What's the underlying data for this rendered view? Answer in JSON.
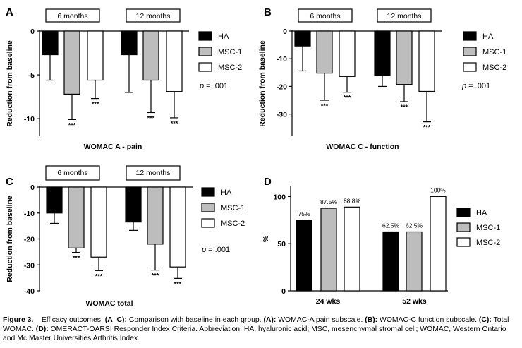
{
  "legend_labels": [
    "HA",
    "MSC-1",
    "MSC-2"
  ],
  "series_colors": {
    "HA": "#000000",
    "MSC-1": "#bdbdbd",
    "MSC-2": "#ffffff"
  },
  "significance_mark": "***",
  "chart_data": [
    {
      "panel": "A",
      "type": "bar",
      "title": "WOMAC A - pain",
      "xlabel": "WOMAC A - pain",
      "ylabel": "Reduction from baseline",
      "ylim": [
        -12,
        0
      ],
      "yticks": [
        0,
        -5,
        -10
      ],
      "groups": [
        "6 months",
        "12 months"
      ],
      "series": [
        {
          "name": "HA",
          "values": [
            -2.7,
            -2.7
          ],
          "errors": [
            2.9,
            4.3
          ],
          "sig": [
            false,
            false
          ]
        },
        {
          "name": "MSC-1",
          "values": [
            -7.2,
            -5.6
          ],
          "errors": [
            2.9,
            3.7
          ],
          "sig": [
            true,
            true
          ]
        },
        {
          "name": "MSC-2",
          "values": [
            -5.6,
            -6.9
          ],
          "errors": [
            2.1,
            3.0
          ],
          "sig": [
            true,
            true
          ]
        }
      ],
      "annotation": {
        "prefix": "p",
        "text": " = .001"
      }
    },
    {
      "panel": "B",
      "type": "bar",
      "title": "WOMAC C - function",
      "xlabel": "WOMAC C - function",
      "ylabel": "Reduction from baseline",
      "ylim": [
        -38,
        0
      ],
      "yticks": [
        0,
        -10,
        -20,
        -30
      ],
      "groups": [
        "6 months",
        "12 months"
      ],
      "series": [
        {
          "name": "HA",
          "values": [
            -5.4,
            -16.0
          ],
          "errors": [
            9.0,
            4.0
          ],
          "sig": [
            false,
            false
          ]
        },
        {
          "name": "MSC-1",
          "values": [
            -15.2,
            -19.3
          ],
          "errors": [
            9.8,
            6.2
          ],
          "sig": [
            true,
            true
          ]
        },
        {
          "name": "MSC-2",
          "values": [
            -16.4,
            -21.8
          ],
          "errors": [
            5.7,
            11.0
          ],
          "sig": [
            true,
            true
          ]
        }
      ],
      "annotation": {
        "prefix": "p",
        "text": " = .001"
      }
    },
    {
      "panel": "C",
      "type": "bar",
      "title": "WOMAC total",
      "xlabel": "WOMAC total",
      "ylabel": "Reduction from baseline",
      "ylim": [
        -40,
        0
      ],
      "yticks": [
        0,
        -10,
        -20,
        -30,
        -40
      ],
      "groups": [
        "6 months",
        "12 months"
      ],
      "series": [
        {
          "name": "HA",
          "values": [
            -10.0,
            -13.5
          ],
          "errors": [
            4.0,
            3.2
          ],
          "sig": [
            false,
            false
          ]
        },
        {
          "name": "MSC-1",
          "values": [
            -23.5,
            -22.0
          ],
          "errors": [
            1.7,
            10.0
          ],
          "sig": [
            true,
            true
          ]
        },
        {
          "name": "MSC-2",
          "values": [
            -27.0,
            -30.8
          ],
          "errors": [
            5.2,
            4.4
          ],
          "sig": [
            true,
            true
          ]
        }
      ],
      "annotation": {
        "prefix": "p",
        "text": " = .001"
      }
    },
    {
      "panel": "D",
      "type": "bar",
      "title": "OMERACT-OARSI Responder Index",
      "xlabel": "",
      "ylabel": "%",
      "ylim": [
        0,
        110
      ],
      "yticks": [
        0,
        50,
        100
      ],
      "categories": [
        "24 wks",
        "52 wks"
      ],
      "series": [
        {
          "name": "HA",
          "values": [
            75,
            62.5
          ],
          "labels": [
            "75%",
            "62.5%"
          ]
        },
        {
          "name": "MSC-1",
          "values": [
            87.5,
            62.5
          ],
          "labels": [
            "87.5%",
            "62.5%"
          ]
        },
        {
          "name": "MSC-2",
          "values": [
            88.8,
            100
          ],
          "labels": [
            "88.8%",
            "100%"
          ]
        }
      ]
    }
  ],
  "caption": {
    "label": "Figure 3.",
    "segments": [
      {
        "bold": false,
        "text": "Efficacy outcomes. "
      },
      {
        "bold": true,
        "text": "(A–C):"
      },
      {
        "bold": false,
        "text": " Comparison with baseline in each group. "
      },
      {
        "bold": true,
        "text": "(A):"
      },
      {
        "bold": false,
        "text": " WOMAC-A pain subscale. "
      },
      {
        "bold": true,
        "text": "(B):"
      },
      {
        "bold": false,
        "text": " WOMAC-C function subscale. "
      },
      {
        "bold": true,
        "text": "(C):"
      },
      {
        "bold": false,
        "text": " Total WOMAC. "
      },
      {
        "bold": true,
        "text": "(D):"
      },
      {
        "bold": false,
        "text": " OMERACT-OARSI Responder Index Criteria. Abbreviation: HA, hyaluronic acid; MSC, mesenchymal stromal cell; WOMAC, Western Ontario and Mc Master Universities Arthritis Index."
      }
    ]
  }
}
